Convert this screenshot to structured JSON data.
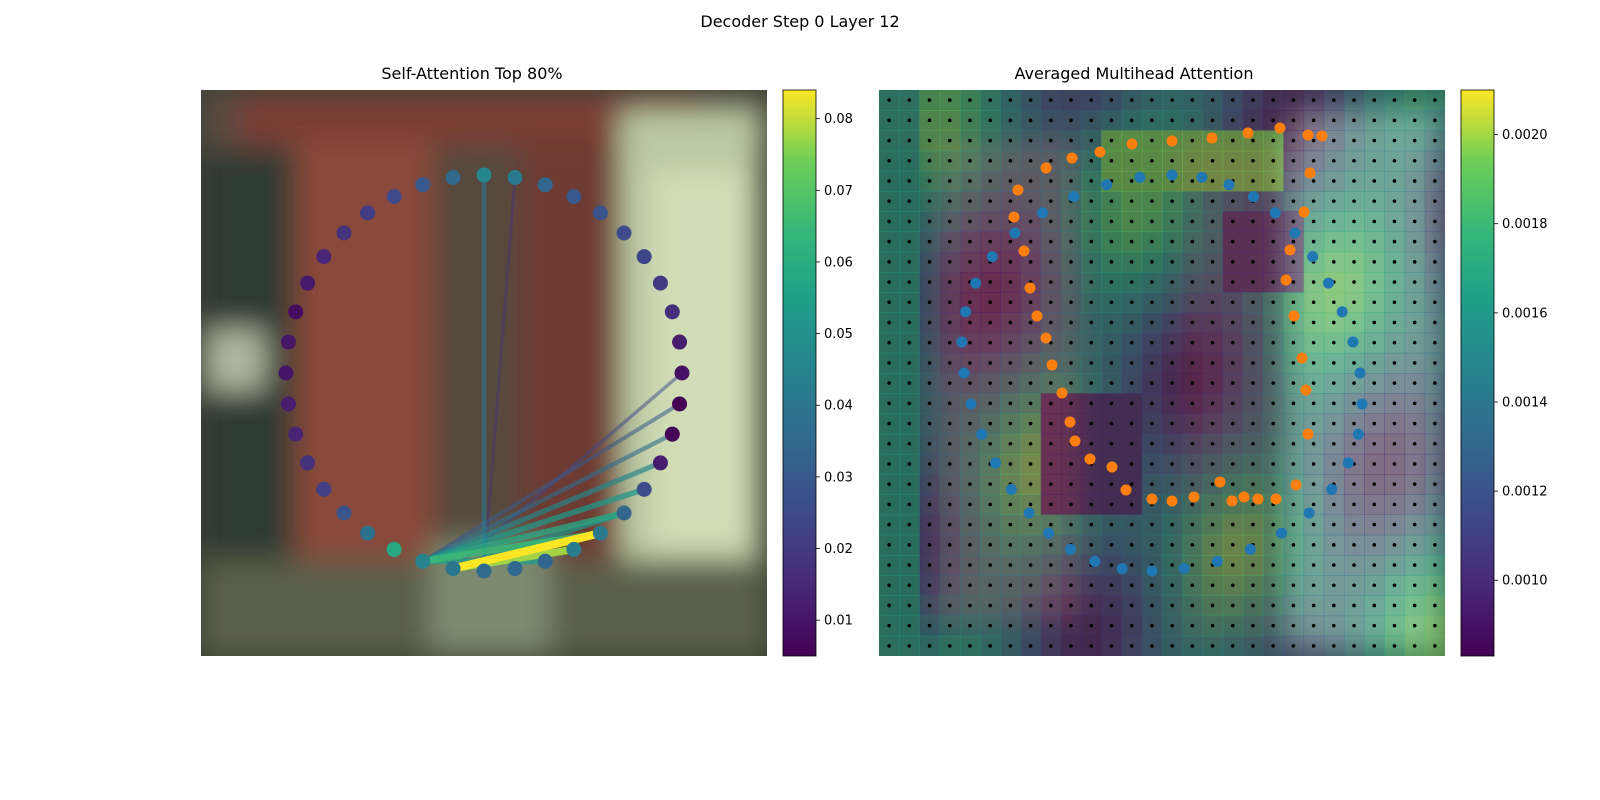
{
  "figure": {
    "title": "Decoder Step 0 Layer 12"
  },
  "chart_data": [
    {
      "type": "scatter",
      "title": "Self-Attention Top 80%",
      "xlabel": "",
      "ylabel": "",
      "node_count": 40,
      "node_values": [
        0.046,
        0.041,
        0.034,
        0.03,
        0.028,
        0.025,
        0.024,
        0.02,
        0.017,
        0.012,
        0.009,
        0.005,
        0.006,
        0.012,
        0.026,
        0.034,
        0.041,
        0.042,
        0.034,
        0.035,
        0.036,
        0.04,
        0.045,
        0.058,
        0.038,
        0.028,
        0.022,
        0.018,
        0.014,
        0.012,
        0.01,
        0.01,
        0.008,
        0.011,
        0.014,
        0.018,
        0.021,
        0.025,
        0.03,
        0.035
      ],
      "edges": [
        {
          "source": 21,
          "target": 16,
          "value": 0.084
        },
        {
          "source": 21,
          "target": 17,
          "value": 0.078
        },
        {
          "source": 22,
          "target": 16,
          "value": 0.065
        },
        {
          "source": 22,
          "target": 15,
          "value": 0.058
        },
        {
          "source": 22,
          "target": 14,
          "value": 0.052
        },
        {
          "source": 22,
          "target": 13,
          "value": 0.046
        },
        {
          "source": 22,
          "target": 18,
          "value": 0.055
        },
        {
          "source": 21,
          "target": 15,
          "value": 0.05
        },
        {
          "source": 22,
          "target": 12,
          "value": 0.036
        },
        {
          "source": 22,
          "target": 11,
          "value": 0.03
        },
        {
          "source": 21,
          "target": 10,
          "value": 0.025
        },
        {
          "source": 20,
          "target": 0,
          "value": 0.04
        },
        {
          "source": 20,
          "target": 1,
          "value": 0.018
        }
      ],
      "colorbar": {
        "min": 0.005,
        "max": 0.084,
        "ticks": [
          "0.01",
          "0.02",
          "0.03",
          "0.04",
          "0.05",
          "0.06",
          "0.07",
          "0.08"
        ]
      },
      "colormap": "viridis",
      "grid": false
    },
    {
      "type": "heatmap",
      "title": "Averaged Multihead Attention",
      "xlabel": "",
      "ylabel": "",
      "grid_size": 28,
      "colorbar": {
        "min": 0.00083,
        "max": 0.0021,
        "ticks": [
          "0.0010",
          "0.0012",
          "0.0014",
          "0.0016",
          "0.0018",
          "0.0020"
        ]
      },
      "colormap": "viridis",
      "series": [
        {
          "color": "#1f77b4",
          "point_count": 40
        },
        {
          "color": "#ff7f0e",
          "point_count": 40
        }
      ],
      "grid": false
    }
  ]
}
